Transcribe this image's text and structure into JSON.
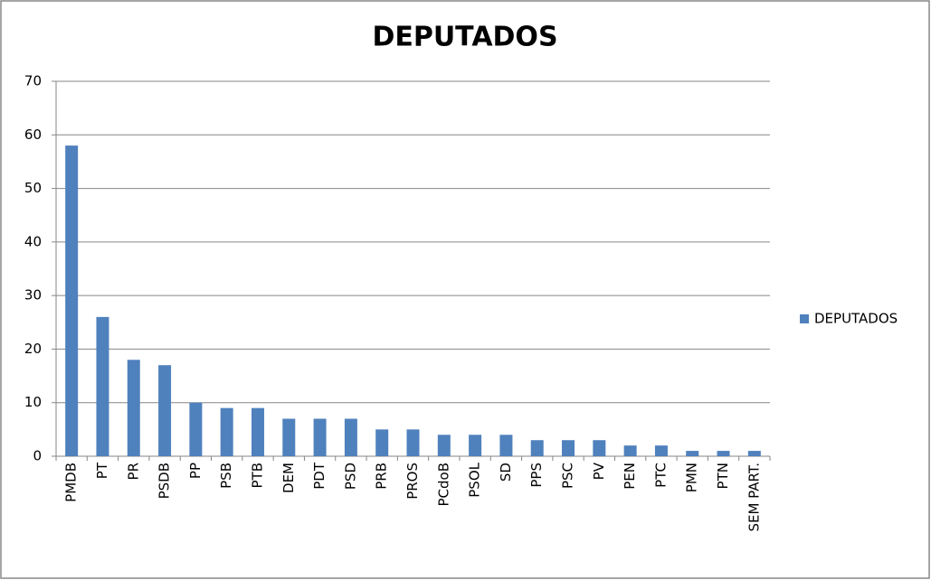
{
  "chart_data": {
    "type": "bar",
    "title": "DEPUTADOS",
    "categories": [
      "PMDB",
      "PT",
      "PR",
      "PSDB",
      "PP",
      "PSB",
      "PTB",
      "DEM",
      "PDT",
      "PSD",
      "PRB",
      "PROS",
      "PCdoB",
      "PSOL",
      "SD",
      "PPS",
      "PSC",
      "PV",
      "PEN",
      "PTC",
      "PMN",
      "PTN",
      "SEM PART."
    ],
    "series": [
      {
        "name": "DEPUTADOS",
        "color": "#4f81bd",
        "values": [
          58,
          26,
          18,
          17,
          10,
          9,
          9,
          7,
          7,
          7,
          5,
          5,
          4,
          4,
          4,
          3,
          3,
          3,
          2,
          2,
          1,
          1,
          1
        ]
      }
    ],
    "ylim": [
      0,
      70
    ],
    "yticks": [
      0,
      10,
      20,
      30,
      40,
      50,
      60,
      70
    ],
    "grid": true,
    "legend": "right"
  }
}
